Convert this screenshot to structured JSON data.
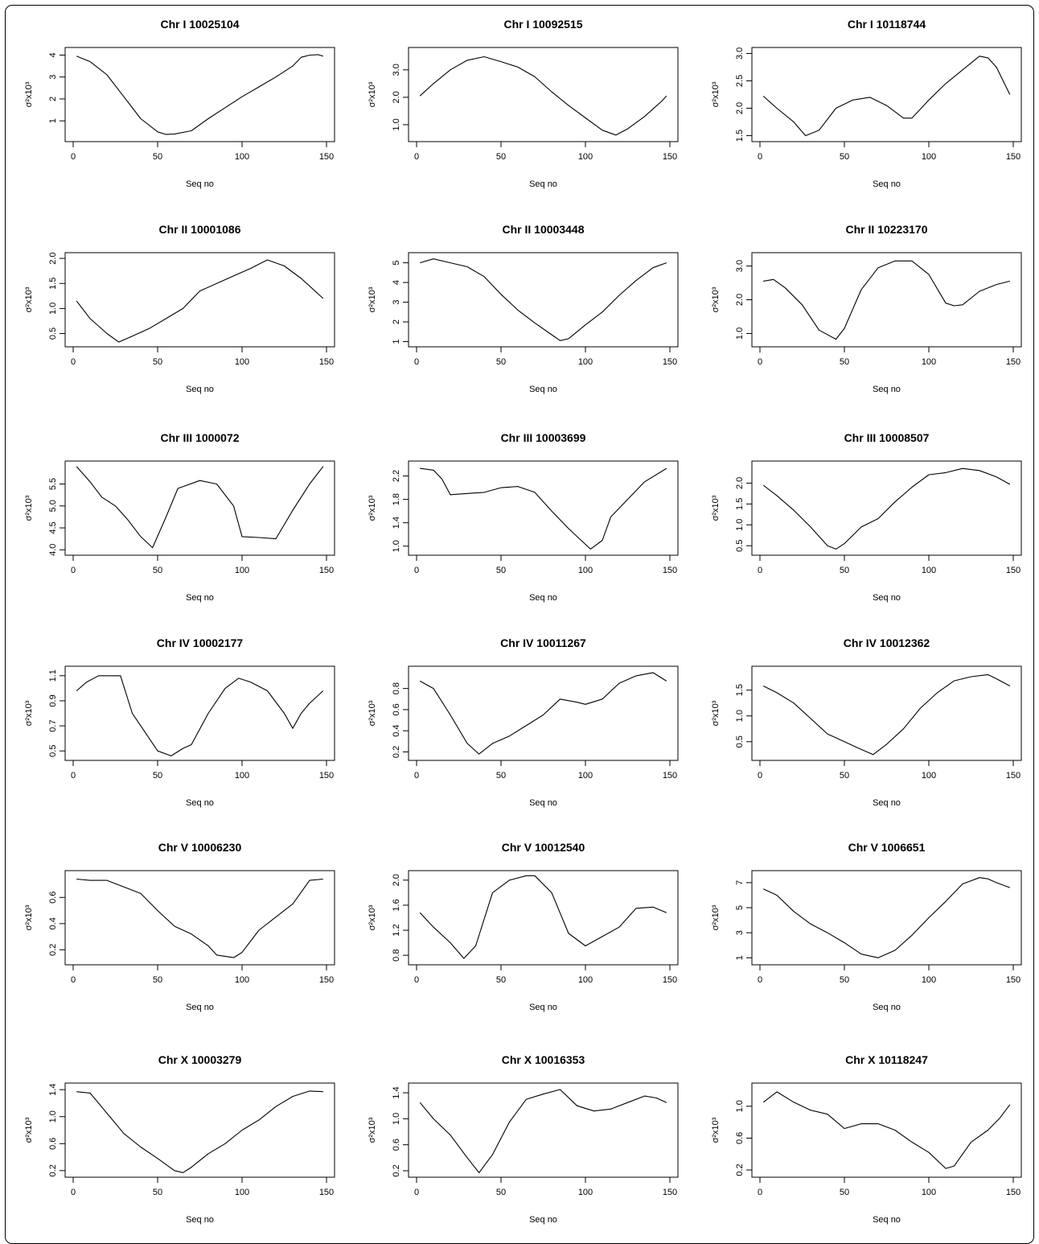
{
  "chart_data": [
    {
      "type": "line",
      "title": "Chr I  10025104",
      "xlabel": "Seq no",
      "ylabel": "σ²x10³",
      "xlim": [
        0,
        150
      ],
      "xticks": [
        0,
        50,
        100,
        150
      ],
      "ylim": [
        0.2,
        4.2
      ],
      "yticks": [
        "1",
        "2",
        "3",
        "4"
      ],
      "ytickvals": [
        1,
        2,
        3,
        4
      ],
      "x": [
        2,
        10,
        20,
        30,
        40,
        50,
        55,
        60,
        70,
        80,
        90,
        100,
        110,
        120,
        130,
        135,
        140,
        145,
        148
      ],
      "y": [
        3.95,
        3.7,
        3.1,
        2.1,
        1.1,
        0.5,
        0.38,
        0.4,
        0.55,
        1.1,
        1.6,
        2.1,
        2.55,
        3.0,
        3.5,
        3.9,
        4.0,
        4.02,
        3.95
      ]
    },
    {
      "type": "line",
      "title": "Chr I  10092515",
      "xlabel": "Seq no",
      "ylabel": "σ²x10³",
      "xlim": [
        0,
        150
      ],
      "xticks": [
        0,
        50,
        100,
        150
      ],
      "ylim": [
        0.5,
        3.7
      ],
      "yticks": [
        "1.0",
        "2.0",
        "3.0"
      ],
      "ytickvals": [
        1.0,
        2.0,
        3.0
      ],
      "x": [
        2,
        10,
        20,
        30,
        40,
        50,
        60,
        70,
        80,
        90,
        100,
        110,
        118,
        125,
        135,
        145,
        148
      ],
      "y": [
        2.05,
        2.5,
        3.0,
        3.35,
        3.48,
        3.3,
        3.1,
        2.75,
        2.2,
        1.7,
        1.25,
        0.8,
        0.62,
        0.85,
        1.3,
        1.85,
        2.05
      ]
    },
    {
      "type": "line",
      "title": "Chr I  10118744",
      "xlabel": "Seq no",
      "ylabel": "σ²x10³",
      "xlim": [
        0,
        150
      ],
      "xticks": [
        0,
        50,
        100,
        150
      ],
      "ylim": [
        1.45,
        3.05
      ],
      "yticks": [
        "1.5",
        "2.0",
        "2.5",
        "3.0"
      ],
      "ytickvals": [
        1.5,
        2.0,
        2.5,
        3.0
      ],
      "x": [
        2,
        10,
        20,
        27,
        35,
        45,
        55,
        65,
        75,
        85,
        90,
        100,
        110,
        120,
        130,
        135,
        140,
        148
      ],
      "y": [
        2.22,
        2.0,
        1.75,
        1.5,
        1.6,
        2.0,
        2.15,
        2.2,
        2.05,
        1.82,
        1.82,
        2.15,
        2.45,
        2.7,
        2.95,
        2.92,
        2.75,
        2.25
      ]
    },
    {
      "type": "line",
      "title": "Chr II  10001086",
      "xlabel": "Seq no",
      "ylabel": "σ²x10³",
      "xlim": [
        0,
        150
      ],
      "xticks": [
        0,
        50,
        100,
        150
      ],
      "ylim": [
        0.3,
        2.05
      ],
      "yticks": [
        "0.5",
        "1.0",
        "1.5",
        "2.0"
      ],
      "ytickvals": [
        0.5,
        1.0,
        1.5,
        2.0
      ],
      "x": [
        2,
        10,
        20,
        27,
        35,
        45,
        55,
        65,
        75,
        85,
        95,
        105,
        115,
        125,
        135,
        148
      ],
      "y": [
        1.15,
        0.8,
        0.5,
        0.33,
        0.45,
        0.6,
        0.8,
        1.0,
        1.35,
        1.5,
        1.65,
        1.8,
        1.97,
        1.85,
        1.6,
        1.2
      ]
    },
    {
      "type": "line",
      "title": "Chr II  10003448",
      "xlabel": "Seq no",
      "ylabel": "σ²x10³",
      "xlim": [
        0,
        150
      ],
      "xticks": [
        0,
        50,
        100,
        150
      ],
      "ylim": [
        0.9,
        5.35
      ],
      "yticks": [
        "1",
        "2",
        "3",
        "4",
        "5"
      ],
      "ytickvals": [
        1,
        2,
        3,
        4,
        5
      ],
      "x": [
        2,
        10,
        20,
        30,
        40,
        50,
        60,
        70,
        80,
        85,
        90,
        100,
        110,
        120,
        130,
        140,
        148
      ],
      "y": [
        5.0,
        5.2,
        5.0,
        4.8,
        4.3,
        3.4,
        2.6,
        1.95,
        1.35,
        1.05,
        1.15,
        1.85,
        2.5,
        3.35,
        4.1,
        4.75,
        5.0
      ]
    },
    {
      "type": "line",
      "title": "Chr II  10223170",
      "xlabel": "Seq no",
      "ylabel": "σ²x10³",
      "xlim": [
        0,
        150
      ],
      "xticks": [
        0,
        50,
        100,
        150
      ],
      "ylim": [
        0.7,
        3.3
      ],
      "yticks": [
        "1.0",
        "2.0",
        "3.0"
      ],
      "ytickvals": [
        1.0,
        2.0,
        3.0
      ],
      "x": [
        2,
        8,
        15,
        25,
        35,
        45,
        50,
        60,
        70,
        80,
        90,
        100,
        110,
        115,
        120,
        130,
        140,
        148
      ],
      "y": [
        2.55,
        2.6,
        2.35,
        1.85,
        1.1,
        0.83,
        1.15,
        2.3,
        2.95,
        3.15,
        3.15,
        2.75,
        1.9,
        1.82,
        1.85,
        2.25,
        2.45,
        2.55
      ]
    },
    {
      "type": "line",
      "title": "Chr III  1000072",
      "xlabel": "Seq no",
      "ylabel": "σ²x10³",
      "xlim": [
        0,
        150
      ],
      "xticks": [
        0,
        50,
        100,
        150
      ],
      "ylim": [
        3.95,
        5.95
      ],
      "yticks": [
        "4.0",
        "4.5",
        "5.0",
        "5.5"
      ],
      "ytickvals": [
        4.0,
        4.5,
        5.0,
        5.5
      ],
      "x": [
        2,
        10,
        17,
        25,
        32,
        40,
        47,
        55,
        62,
        75,
        85,
        95,
        100,
        110,
        120,
        130,
        140,
        148
      ],
      "y": [
        5.9,
        5.55,
        5.2,
        5.0,
        4.7,
        4.3,
        4.05,
        4.75,
        5.4,
        5.58,
        5.5,
        5.0,
        4.3,
        4.28,
        4.25,
        4.9,
        5.5,
        5.9
      ]
    },
    {
      "type": "line",
      "title": "Chr III  10003699",
      "xlabel": "Seq no",
      "ylabel": "σ²x10³",
      "xlim": [
        0,
        150
      ],
      "xticks": [
        0,
        50,
        100,
        150
      ],
      "ylim": [
        0.9,
        2.4
      ],
      "yticks": [
        "1.0",
        "1.4",
        "1.8",
        "2.2"
      ],
      "ytickvals": [
        1.0,
        1.4,
        1.8,
        2.2
      ],
      "x": [
        2,
        10,
        15,
        20,
        30,
        40,
        50,
        60,
        70,
        80,
        90,
        103,
        110,
        115,
        125,
        135,
        148
      ],
      "y": [
        2.33,
        2.3,
        2.15,
        1.88,
        1.9,
        1.92,
        2.0,
        2.02,
        1.92,
        1.6,
        1.3,
        0.95,
        1.1,
        1.5,
        1.8,
        2.1,
        2.33
      ]
    },
    {
      "type": "line",
      "title": "Chr III  10008507",
      "xlabel": "Seq no",
      "ylabel": "σ²x10³",
      "xlim": [
        0,
        150
      ],
      "xticks": [
        0,
        50,
        100,
        150
      ],
      "ylim": [
        0.35,
        2.45
      ],
      "yticks": [
        "0.5",
        "1.0",
        "1.5",
        "2.0"
      ],
      "ytickvals": [
        0.5,
        1.0,
        1.5,
        2.0
      ],
      "x": [
        2,
        10,
        20,
        30,
        40,
        45,
        50,
        60,
        70,
        80,
        90,
        100,
        110,
        120,
        130,
        140,
        148
      ],
      "y": [
        1.95,
        1.7,
        1.35,
        0.95,
        0.5,
        0.42,
        0.55,
        0.95,
        1.15,
        1.55,
        1.9,
        2.2,
        2.25,
        2.35,
        2.3,
        2.15,
        1.97
      ]
    },
    {
      "type": "line",
      "title": "Chr IV  10002177",
      "xlabel": "Seq no",
      "ylabel": "σ²x10³",
      "xlim": [
        0,
        150
      ],
      "xticks": [
        0,
        50,
        100,
        150
      ],
      "ylim": [
        0.45,
        1.15
      ],
      "yticks": [
        "0.5",
        "0.7",
        "0.9",
        "1.1"
      ],
      "ytickvals": [
        0.5,
        0.7,
        0.9,
        1.1
      ],
      "x": [
        2,
        8,
        15,
        22,
        28,
        35,
        45,
        50,
        58,
        65,
        70,
        80,
        90,
        98,
        105,
        115,
        125,
        130,
        135,
        140,
        148
      ],
      "y": [
        0.98,
        1.05,
        1.1,
        1.1,
        1.1,
        0.8,
        0.6,
        0.5,
        0.46,
        0.52,
        0.55,
        0.8,
        1.0,
        1.08,
        1.05,
        0.98,
        0.8,
        0.68,
        0.8,
        0.88,
        0.98
      ]
    },
    {
      "type": "line",
      "title": "Chr IV  10011267",
      "xlabel": "Seq no",
      "ylabel": "σ²x10³",
      "xlim": [
        0,
        150
      ],
      "xticks": [
        0,
        50,
        100,
        150
      ],
      "ylim": [
        0.15,
        0.98
      ],
      "yticks": [
        "0.2",
        "0.4",
        "0.6",
        "0.8"
      ],
      "ytickvals": [
        0.2,
        0.4,
        0.6,
        0.8
      ],
      "x": [
        2,
        10,
        20,
        30,
        37,
        45,
        55,
        65,
        75,
        85,
        95,
        100,
        110,
        120,
        130,
        140,
        148
      ],
      "y": [
        0.87,
        0.8,
        0.55,
        0.28,
        0.18,
        0.28,
        0.35,
        0.45,
        0.55,
        0.7,
        0.67,
        0.65,
        0.7,
        0.85,
        0.92,
        0.95,
        0.87
      ]
    },
    {
      "type": "line",
      "title": "Chr IV  10012362",
      "xlabel": "Seq no",
      "ylabel": "σ²x10³",
      "xlim": [
        0,
        150
      ],
      "xticks": [
        0,
        50,
        100,
        150
      ],
      "ylim": [
        0.2,
        1.9
      ],
      "yticks": [
        "0.5",
        "1.0",
        "1.5"
      ],
      "ytickvals": [
        0.5,
        1.0,
        1.5
      ],
      "x": [
        2,
        10,
        20,
        30,
        40,
        50,
        60,
        67,
        75,
        85,
        95,
        105,
        115,
        125,
        135,
        140,
        148
      ],
      "y": [
        1.58,
        1.45,
        1.25,
        0.95,
        0.65,
        0.5,
        0.35,
        0.25,
        0.45,
        0.75,
        1.15,
        1.45,
        1.68,
        1.76,
        1.8,
        1.72,
        1.58
      ]
    },
    {
      "type": "line",
      "title": "Chr V  10006230",
      "xlabel": "Seq no",
      "ylabel": "σ²x10³",
      "xlim": [
        0,
        150
      ],
      "xticks": [
        0,
        50,
        100,
        150
      ],
      "ylim": [
        0.11,
        0.78
      ],
      "yticks": [
        "0.2",
        "0.4",
        "0.6"
      ],
      "ytickvals": [
        0.2,
        0.4,
        0.6
      ],
      "x": [
        2,
        10,
        20,
        30,
        40,
        50,
        60,
        70,
        80,
        85,
        95,
        100,
        110,
        120,
        130,
        140,
        148
      ],
      "y": [
        0.74,
        0.73,
        0.73,
        0.68,
        0.63,
        0.5,
        0.38,
        0.32,
        0.23,
        0.16,
        0.14,
        0.18,
        0.35,
        0.45,
        0.55,
        0.73,
        0.74
      ]
    },
    {
      "type": "line",
      "title": "Chr V  10012540",
      "xlabel": "Seq no",
      "ylabel": "σ²x10³",
      "xlim": [
        0,
        150
      ],
      "xticks": [
        0,
        50,
        100,
        150
      ],
      "ylim": [
        0.7,
        2.1
      ],
      "yticks": [
        "0.8",
        "1.2",
        "1.6",
        "2.0"
      ],
      "ytickvals": [
        0.8,
        1.2,
        1.6,
        2.0
      ],
      "x": [
        2,
        10,
        20,
        28,
        35,
        45,
        55,
        65,
        70,
        80,
        90,
        100,
        110,
        120,
        130,
        140,
        148
      ],
      "y": [
        1.48,
        1.25,
        1.0,
        0.75,
        0.95,
        1.8,
        2.0,
        2.07,
        2.07,
        1.8,
        1.15,
        0.95,
        1.1,
        1.25,
        1.55,
        1.57,
        1.48
      ]
    },
    {
      "type": "line",
      "title": "Chr V  1006651",
      "xlabel": "Seq no",
      "ylabel": "σ²x10³",
      "xlim": [
        0,
        150
      ],
      "xticks": [
        0,
        50,
        100,
        150
      ],
      "ylim": [
        0.7,
        7.7
      ],
      "yticks": [
        "1",
        "3",
        "5",
        "7"
      ],
      "ytickvals": [
        1,
        3,
        5,
        7
      ],
      "x": [
        2,
        10,
        20,
        30,
        40,
        50,
        60,
        70,
        80,
        90,
        100,
        110,
        120,
        130,
        135,
        140,
        148
      ],
      "y": [
        6.5,
        6.0,
        4.7,
        3.7,
        3.0,
        2.2,
        1.3,
        1.0,
        1.6,
        2.8,
        4.2,
        5.5,
        6.9,
        7.4,
        7.3,
        7.0,
        6.6
      ]
    },
    {
      "type": "line",
      "title": "Chr X  10003279",
      "xlabel": "Seq no",
      "ylabel": "σ²x10³",
      "xlim": [
        0,
        150
      ],
      "xticks": [
        0,
        50,
        100,
        150
      ],
      "ylim": [
        0.15,
        1.45
      ],
      "yticks": [
        "0.2",
        "0.6",
        "1.0",
        "1.4"
      ],
      "ytickvals": [
        0.2,
        0.6,
        1.0,
        1.4
      ],
      "x": [
        2,
        10,
        20,
        30,
        40,
        50,
        60,
        65,
        70,
        80,
        90,
        100,
        110,
        120,
        130,
        140,
        148
      ],
      "y": [
        1.37,
        1.35,
        1.05,
        0.75,
        0.55,
        0.38,
        0.2,
        0.17,
        0.25,
        0.45,
        0.6,
        0.8,
        0.95,
        1.15,
        1.3,
        1.38,
        1.37
      ]
    },
    {
      "type": "line",
      "title": "Chr X  10016353",
      "xlabel": "Seq no",
      "ylabel": "σ²x10³",
      "xlim": [
        0,
        150
      ],
      "xticks": [
        0,
        50,
        100,
        150
      ],
      "ylim": [
        0.15,
        1.5
      ],
      "yticks": [
        "0.2",
        "0.6",
        "1.0",
        "1.4"
      ],
      "ytickvals": [
        0.2,
        0.6,
        1.0,
        1.4
      ],
      "x": [
        2,
        10,
        20,
        30,
        37,
        45,
        55,
        65,
        75,
        85,
        95,
        105,
        115,
        125,
        135,
        142,
        148
      ],
      "y": [
        1.25,
        1.0,
        0.75,
        0.4,
        0.17,
        0.45,
        0.95,
        1.3,
        1.38,
        1.45,
        1.2,
        1.12,
        1.15,
        1.25,
        1.35,
        1.32,
        1.25
      ]
    },
    {
      "type": "line",
      "title": "Chr X  10118247",
      "xlabel": "Seq no",
      "ylabel": "σ²x10³",
      "xlim": [
        0,
        150
      ],
      "xticks": [
        0,
        50,
        100,
        150
      ],
      "ylim": [
        0.15,
        1.25
      ],
      "yticks": [
        "0.2",
        "0.6",
        "1.0"
      ],
      "ytickvals": [
        0.2,
        0.6,
        1.0
      ],
      "x": [
        2,
        10,
        20,
        30,
        40,
        50,
        60,
        70,
        80,
        90,
        100,
        110,
        115,
        125,
        135,
        142,
        148
      ],
      "y": [
        1.05,
        1.18,
        1.05,
        0.95,
        0.9,
        0.72,
        0.78,
        0.78,
        0.7,
        0.55,
        0.42,
        0.22,
        0.25,
        0.55,
        0.7,
        0.85,
        1.02
      ]
    }
  ]
}
